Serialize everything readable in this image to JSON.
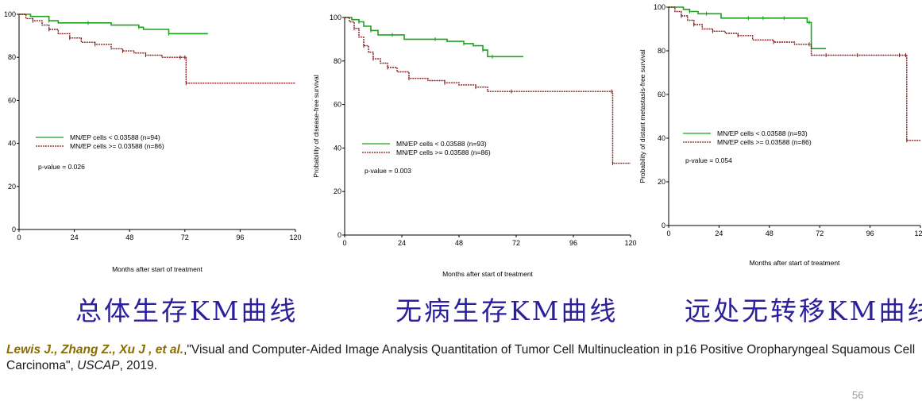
{
  "chart_data": [
    {
      "type": "line",
      "title": "总体生存KM曲线",
      "xlabel": "Months after start of treatment",
      "ylabel": "",
      "xlim": [
        0,
        120
      ],
      "ylim": [
        0,
        100
      ],
      "x_ticks": [
        "0",
        "24",
        "48",
        "72",
        "96",
        "120"
      ],
      "y_ticks": [
        "0",
        "20",
        "40",
        "60",
        "80",
        "100"
      ],
      "legend": [
        "MN/EP cells < 0.03588 (n=94)",
        "MN/EP cells >= 0.03588 (n=86)"
      ],
      "pvalue": "p-value = 0.026",
      "series": [
        {
          "name": "MN/EP cells < 0.03588 (n=94)",
          "color": "#1fa01f",
          "x": [
            0,
            5,
            13,
            17,
            30,
            40,
            52,
            54,
            65,
            82
          ],
          "y": [
            100,
            99,
            97,
            96,
            96,
            95,
            94,
            93,
            91,
            91
          ]
        },
        {
          "name": "MN/EP cells >= 0.03588 (n=86)",
          "color": "#8b1a1a",
          "x": [
            0,
            3,
            6,
            10,
            13,
            17,
            22,
            27,
            33,
            40,
            45,
            50,
            55,
            62,
            70,
            72,
            72.5,
            120
          ],
          "y": [
            100,
            98,
            97,
            95,
            93,
            91,
            89,
            87,
            86,
            84,
            83,
            82,
            81,
            80,
            80,
            80,
            68,
            68
          ]
        }
      ]
    },
    {
      "type": "line",
      "title": "无病生存KM曲线",
      "xlabel": "Months after start of treatment",
      "ylabel": "Probability of disease-free survival",
      "xlim": [
        0,
        120
      ],
      "ylim": [
        0,
        100
      ],
      "x_ticks": [
        "0",
        "24",
        "48",
        "72",
        "96",
        "120"
      ],
      "y_ticks": [
        "0",
        "20",
        "40",
        "60",
        "80",
        "100"
      ],
      "legend": [
        "MN/EP cells < 0.03588 (n=93)",
        "MN/EP cells >= 0.03588 (n=86)"
      ],
      "pvalue": "p-value = 0.003",
      "series": [
        {
          "name": "MN/EP cells < 0.03588 (n=93)",
          "color": "#1fa01f",
          "x": [
            0,
            3,
            6,
            8,
            11,
            14,
            20,
            25,
            38,
            43,
            50,
            54,
            58,
            60,
            62,
            75
          ],
          "y": [
            100,
            99,
            98,
            96,
            94,
            92,
            92,
            90,
            90,
            89,
            88,
            87,
            85,
            82,
            82,
            82
          ]
        },
        {
          "name": "MN/EP cells >= 0.03588 (n=86)",
          "color": "#8b1a1a",
          "x": [
            0,
            2,
            4,
            6,
            8,
            10,
            12,
            15,
            18,
            22,
            27,
            35,
            42,
            48,
            55,
            60,
            70,
            112,
            112.5,
            120
          ],
          "y": [
            100,
            98,
            95,
            91,
            87,
            84,
            81,
            79,
            77,
            75,
            72,
            71,
            70,
            69,
            68,
            66,
            66,
            66,
            33,
            33
          ]
        }
      ]
    },
    {
      "type": "line",
      "title": "远处无转移KM曲线",
      "xlabel": "Months after start of treatment",
      "ylabel": "Probability of distant metastasis-free survival",
      "xlim": [
        0,
        120
      ],
      "ylim": [
        0,
        100
      ],
      "x_ticks": [
        "0",
        "24",
        "48",
        "72",
        "96",
        "120"
      ],
      "y_ticks": [
        "0",
        "20",
        "40",
        "60",
        "80",
        "100"
      ],
      "legend": [
        "MN/EP cells < 0.03588 (n=93)",
        "MN/EP cells >= 0.03588 (n=86)"
      ],
      "pvalue": "p-value = 0.054",
      "series": [
        {
          "name": "MN/EP cells < 0.03588 (n=93)",
          "color": "#1fa01f",
          "x": [
            0,
            7,
            10,
            14,
            18,
            25,
            38,
            45,
            55,
            66,
            67,
            68,
            75
          ],
          "y": [
            100,
            99,
            98,
            97,
            97,
            95,
            95,
            95,
            95,
            93,
            93,
            81,
            81
          ]
        },
        {
          "name": "MN/EP cells >= 0.03588 (n=86)",
          "color": "#8b1a1a",
          "x": [
            0,
            3,
            6,
            9,
            12,
            16,
            21,
            27,
            33,
            40,
            50,
            60,
            67,
            68,
            75,
            90,
            110,
            113,
            113.5,
            120
          ],
          "y": [
            100,
            98,
            96,
            94,
            92,
            90,
            89,
            88,
            87,
            85,
            84,
            83,
            83,
            78,
            78,
            78,
            78,
            78,
            39,
            39
          ]
        }
      ]
    }
  ],
  "captions": [
    "总体生存KM曲线",
    "无病生存KM曲线",
    "远处无转移KM曲线"
  ],
  "citation": {
    "authors": "Lewis J., Zhang Z., Xu J , et al.",
    "title_text": ",\"Visual and Computer-Aided Image Analysis Quantitation of Tumor Cell Multinucleation in p16 Positive Oropharyngeal Squamous Cell Carcinoma\", ",
    "journal": "USCAP",
    "year": ", 2019."
  },
  "page_number": "56"
}
